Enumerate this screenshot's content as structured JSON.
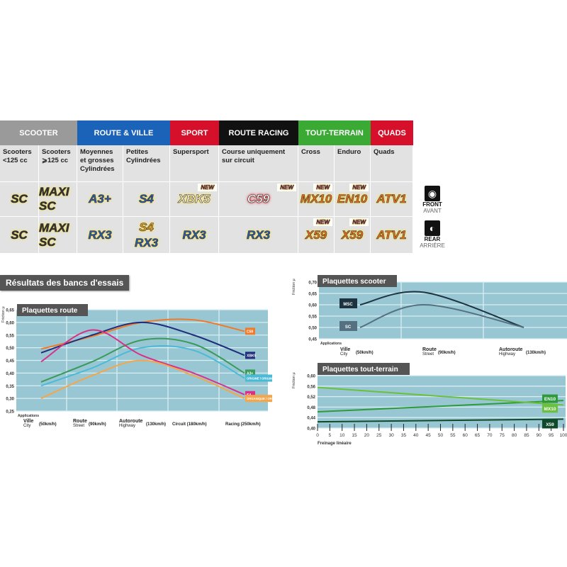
{
  "table": {
    "categories": [
      {
        "label": "SCOOTER",
        "color": "#9a9a9a"
      },
      {
        "label": "ROUTE & VILLE",
        "color": "#1b63b8"
      },
      {
        "label": "SPORT",
        "color": "#d6102a"
      },
      {
        "label": "ROUTE RACING",
        "color": "#111111"
      },
      {
        "label": "TOUT-TERRAIN",
        "color": "#3aaa35"
      },
      {
        "label": "QUADS",
        "color": "#d6102a"
      }
    ],
    "columns": [
      {
        "desc": "Scooters <125 cc",
        "front": "SC",
        "rear": [
          "SC"
        ],
        "front_new": "",
        "rear_new": ""
      },
      {
        "desc": "Scooters ⩾125 cc",
        "front": "MAXI SC",
        "rear": [
          "MAXI SC"
        ],
        "front_new": "",
        "rear_new": ""
      },
      {
        "desc": "Moyennes et grosses Cylindrées",
        "front": "A3+",
        "rear": [
          "RX3"
        ],
        "front_new": "",
        "rear_new": ""
      },
      {
        "desc": "Petites Cylindrées",
        "front": "S4",
        "rear": [
          "S4",
          "RX3"
        ],
        "front_new": "",
        "rear_new": ""
      },
      {
        "desc": "Supersport",
        "front": "XBK5",
        "rear": [
          "RX3"
        ],
        "front_new": "NEW",
        "rear_new": ""
      },
      {
        "desc": "Course uniquement sur circuit",
        "front": "C59",
        "rear": [
          "RX3"
        ],
        "front_new": "NEW",
        "rear_new": ""
      },
      {
        "desc": "Cross",
        "front": "MX10",
        "rear": [
          "X59"
        ],
        "front_new": "NEW",
        "rear_new": "NEW"
      },
      {
        "desc": "Enduro",
        "front": "EN10",
        "rear": [
          "X59"
        ],
        "front_new": "NEW",
        "rear_new": "NEW"
      },
      {
        "desc": "Quads",
        "front": "ATV1",
        "rear": [
          "ATV1"
        ],
        "front_new": "",
        "rear_new": ""
      }
    ],
    "front": {
      "label": "FRONT",
      "sub": "AVANT",
      "icon": "front-wheel-icon"
    },
    "rear": {
      "label": "REAR",
      "sub": "ARRIÈRE",
      "icon": "rear-wheel-icon"
    }
  },
  "section_title": "Résultats des bancs d'essais",
  "chart_data": [
    {
      "type": "line",
      "title": "Plaquettes route",
      "ylabel": "Friction μ",
      "ylim": [
        0.25,
        0.65
      ],
      "yticks": [
        "0,25",
        "0,30",
        "0,35",
        "0,40",
        "0,45",
        "0,50",
        "0,55",
        "0,60",
        "0,65"
      ],
      "xlabel": "Applications",
      "categories": [
        [
          "Ville",
          "City",
          "(50km/h)"
        ],
        [
          "Route",
          "Street",
          "(90km/h)"
        ],
        [
          "Autoroute",
          "Highway",
          "(130km/h)"
        ],
        [
          "Circuit (180km/h)",
          "",
          ""
        ],
        [
          "Racing (250km/h)",
          "",
          ""
        ]
      ],
      "series": [
        {
          "name": "C59",
          "color": "#f07a2a",
          "values": [
            0.495,
            0.545,
            0.6,
            0.61,
            0.565
          ]
        },
        {
          "name": "XBK5",
          "color": "#1f2d7a",
          "values": [
            0.48,
            0.55,
            0.6,
            0.55,
            0.47
          ]
        },
        {
          "name": "A3+",
          "color": "#3a9a5a",
          "values": [
            0.365,
            0.445,
            0.53,
            0.515,
            0.4
          ]
        },
        {
          "name": "ORIGINE / ORIGINAL",
          "color": "#4bbad6",
          "values": [
            0.35,
            0.42,
            0.5,
            0.49,
            0.38
          ]
        },
        {
          "name": "S4",
          "color": "#d8308a",
          "values": [
            0.445,
            0.57,
            0.47,
            0.4,
            0.315
          ]
        },
        {
          "name": "ORGANIQUE / ORGANIC",
          "color": "#f5a64a",
          "values": [
            0.3,
            0.39,
            0.45,
            0.39,
            0.3
          ]
        }
      ]
    },
    {
      "type": "line",
      "title": "Plaquettes scooter",
      "ylabel": "Friction μ",
      "ylim": [
        0.45,
        0.7
      ],
      "yticks": [
        "0,45",
        "0,50",
        "0,55",
        "0,60",
        "0,65",
        "0,70"
      ],
      "xlabel": "Applications",
      "categories": [
        [
          "Ville",
          "City",
          "(50km/h)"
        ],
        [
          "Route",
          "Street",
          "(90km/h)"
        ],
        [
          "Autoroute",
          "Highway",
          "(130km/h)"
        ]
      ],
      "series": [
        {
          "name": "MSC",
          "color": "#1d3340",
          "values": [
            0.6,
            0.655,
            0.5
          ]
        },
        {
          "name": "SC",
          "color": "#557080",
          "values": [
            0.5,
            0.6,
            0.5
          ]
        }
      ]
    },
    {
      "type": "line",
      "title": "Plaquettes tout-terrain",
      "ylabel": "Friction μ",
      "ylim": [
        0.4,
        0.6
      ],
      "yticks": [
        "0,40",
        "0,44",
        "0,48",
        "0,52",
        "0,56",
        "0,60"
      ],
      "xlabel": "Freinage linéaire",
      "xlim": [
        0,
        100
      ],
      "xticks": [
        "0",
        "5",
        "10",
        "15",
        "20",
        "25",
        "30",
        "35",
        "40",
        "45",
        "50",
        "55",
        "60",
        "65",
        "70",
        "75",
        "80",
        "85",
        "90",
        "95",
        "100"
      ],
      "series": [
        {
          "name": "EN10",
          "color": "#2e9a3a",
          "x": [
            0,
            100
          ],
          "values": [
            0.462,
            0.505
          ]
        },
        {
          "name": "MX10",
          "color": "#6cc040",
          "x": [
            0,
            100
          ],
          "values": [
            0.555,
            0.488
          ]
        },
        {
          "name": "X59",
          "color": "#0f4a2a",
          "x": [
            0,
            100
          ],
          "values": [
            0.424,
            0.434
          ]
        }
      ]
    }
  ]
}
